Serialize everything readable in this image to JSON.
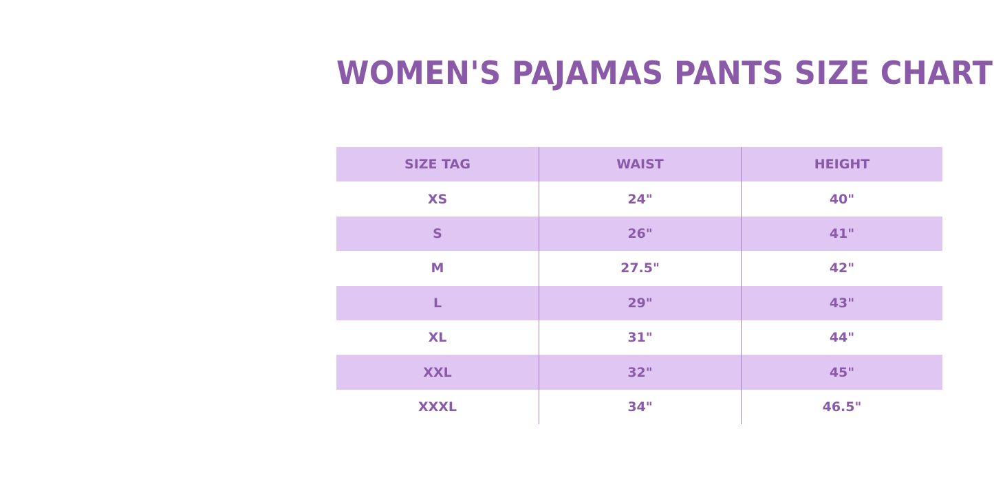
{
  "title": "WOMEN'S PAJAMAS PANTS SIZE CHART",
  "colors": {
    "accent": "#8a5aa8",
    "row_shade": "#e0c6f3"
  },
  "table": {
    "headers": [
      "SIZE TAG",
      "WAIST",
      "HEIGHT"
    ],
    "rows": [
      [
        "XS",
        "24\"",
        "40\""
      ],
      [
        "S",
        "26\"",
        "41\""
      ],
      [
        "M",
        "27.5\"",
        "42\""
      ],
      [
        "L",
        "29\"",
        "43\""
      ],
      [
        "XL",
        "31\"",
        "44\""
      ],
      [
        "XXL",
        "32\"",
        "45\""
      ],
      [
        "XXXL",
        "34\"",
        "46.5\""
      ]
    ]
  }
}
